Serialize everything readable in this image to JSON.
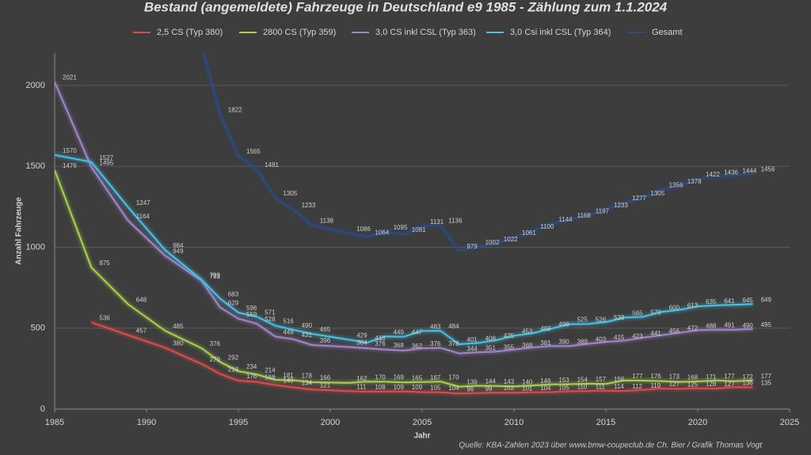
{
  "chart_data": {
    "type": "line",
    "title": "Bestand (angemeldete) Fahrzeuge in Deutschland e9 1985 -  Zählung zum 1.1.2024",
    "x_label": "Jahr",
    "y_label": "Anzahl Fahrzeuge",
    "source": "Quelle: KBA-Zahlen 2023  über www.bmw-coupeclub.de  Ch. Bier / Grafik Thomas Vogt",
    "x": [
      1985,
      1987,
      1989,
      1991,
      1993,
      1994,
      1995,
      1996,
      1997,
      1998,
      1999,
      2001,
      2002,
      2003,
      2004,
      2005,
      2006,
      2007,
      2008,
      2009,
      2010,
      2011,
      2012,
      2013,
      2014,
      2015,
      2016,
      2017,
      2018,
      2019,
      2020,
      2021,
      2022,
      2023
    ],
    "series": [
      {
        "name": "2,5 CS (Typ 380)",
        "color": "#e04a4a",
        "values": [
          null,
          536,
          457,
          380,
          279,
          218,
          176,
          168,
          149,
          134,
          121,
          111,
          108,
          109,
          109,
          105,
          104,
          96,
          99,
          102,
          101,
          104,
          105,
          110,
          111,
          114,
          112,
          119,
          127,
          125,
          128,
          127,
          136,
          135
        ]
      },
      {
        "name": "2800 CS (Typ 359)",
        "color": "#a9d04a",
        "values": [
          1476,
          875,
          648,
          485,
          376,
          292,
          234,
          214,
          181,
          178,
          166,
          162,
          170,
          169,
          165,
          167,
          170,
          139,
          144,
          143,
          140,
          146,
          153,
          154,
          157,
          156,
          177,
          176,
          173,
          168,
          171,
          177,
          172,
          177
        ]
      },
      {
        "name": "3,0 CS inkl CSL (Typ 363)",
        "color": "#a384cc",
        "values": [
          2021,
          1495,
          1164,
          949,
          793,
          629,
          559,
          528,
          449,
          431,
          396,
          384,
          376,
          368,
          362,
          376,
          378,
          344,
          351,
          355,
          368,
          381,
          390,
          389,
          403,
          415,
          423,
          441,
          456,
          472,
          488,
          491,
          490,
          495
        ]
      },
      {
        "name": "3,0 Csi inkl CSL (Typ 364)",
        "color": "#45c3e6",
        "values": [
          1570,
          1527,
          1247,
          984,
          799,
          683,
          596,
          571,
          516,
          490,
          465,
          429,
          410,
          449,
          447,
          483,
          484,
          401,
          408,
          425,
          453,
          469,
          496,
          525,
          526,
          538,
          565,
          570,
          600,
          613,
          635,
          641,
          645,
          649
        ]
      },
      {
        "name": "Gesamt",
        "color": "#2b4c85",
        "values": [
          null,
          null,
          null,
          null,
          2247,
          1822,
          1565,
          1481,
          1305,
          1233,
          1138,
          1086,
          1064,
          1095,
          1081,
          1131,
          1136,
          979,
          1002,
          1022,
          1061,
          1100,
          1144,
          1168,
          1197,
          1233,
          1277,
          1305,
          1356,
          1378,
          1422,
          1436,
          1444,
          1456
        ]
      }
    ],
    "xlim": [
      1985,
      2025
    ],
    "xticks": [
      1985,
      1990,
      1995,
      2000,
      2005,
      2010,
      2015,
      2020,
      2025
    ],
    "ylim": [
      0,
      2200
    ],
    "yticks": [
      0,
      500,
      1000,
      1500,
      2000
    ],
    "grid": true,
    "legend": "top"
  }
}
